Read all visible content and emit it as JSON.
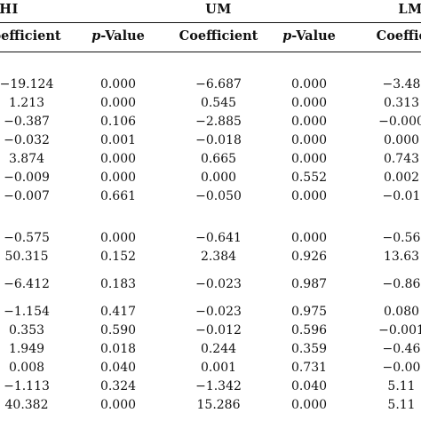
{
  "table": {
    "groups": [
      "HI",
      "UM",
      "LM"
    ],
    "columns": [
      {
        "label": "oefficient",
        "italic_prefix": ""
      },
      {
        "label": "-Value",
        "italic_prefix": "p"
      },
      {
        "label": "Coefficient",
        "italic_prefix": ""
      },
      {
        "label": "-Value",
        "italic_prefix": "p"
      },
      {
        "label": "Coeffic",
        "italic_prefix": ""
      }
    ],
    "rows": [
      [
        "−19.124",
        "0.000",
        "−6.687",
        "0.000",
        "−3.48"
      ],
      [
        "1.213",
        "0.000",
        "0.545",
        "0.000",
        "0.313"
      ],
      [
        "−0.387",
        "0.106",
        "−2.885",
        "0.000",
        "−0.000"
      ],
      [
        "−0.032",
        "0.001",
        "−0.018",
        "0.000",
        "0.000"
      ],
      [
        "3.874",
        "0.000",
        "0.665",
        "0.000",
        "0.743"
      ],
      [
        "−0.009",
        "0.000",
        "0.000",
        "0.552",
        "0.002"
      ],
      [
        "−0.007",
        "0.661",
        "−0.050",
        "0.000",
        "−0.01"
      ],
      [
        "−0.575",
        "0.000",
        "−0.641",
        "0.000",
        "−0.56"
      ],
      [
        "50.315",
        "0.152",
        "2.384",
        "0.926",
        "13.63"
      ],
      [
        "−6.412",
        "0.183",
        "−0.023",
        "0.987",
        "−0.86"
      ],
      [
        "−1.154",
        "0.417",
        "−0.023",
        "0.975",
        "0.080"
      ],
      [
        "0.353",
        "0.590",
        "−0.012",
        "0.596",
        "−0.001"
      ],
      [
        "1.949",
        "0.018",
        "0.244",
        "0.359",
        "−0.46"
      ],
      [
        "0.008",
        "0.040",
        "0.001",
        "0.731",
        "−0.00"
      ],
      [
        "−1.113",
        "0.324",
        "−1.342",
        "0.040",
        "5.11"
      ],
      [
        "40.382",
        "0.000",
        "15.286",
        "0.000",
        "5.11"
      ]
    ]
  }
}
